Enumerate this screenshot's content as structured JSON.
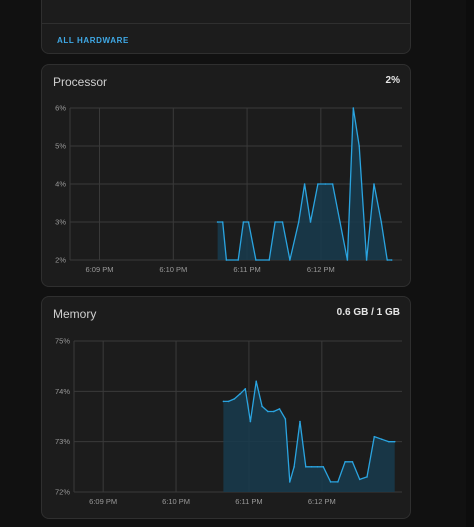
{
  "top_card": {
    "link_label": "ALL HARDWARE"
  },
  "processor": {
    "title": "Processor",
    "current": "2%"
  },
  "memory": {
    "title": "Memory",
    "current": "0.6 GB / 1 GB"
  },
  "chart_data": [
    {
      "type": "area",
      "title": "Processor",
      "x_ticks": [
        "6:09 PM",
        "6:10 PM",
        "6:11 PM",
        "6:12 PM"
      ],
      "x_tick_minutes": [
        9,
        10,
        11,
        12
      ],
      "x_range_minutes": [
        8.6,
        13.1
      ],
      "y_ticks": [
        "6%",
        "5%",
        "4%",
        "3%",
        "2%"
      ],
      "y_tick_values": [
        6,
        5,
        4,
        3,
        2
      ],
      "ylim": [
        2,
        6
      ],
      "grid": true,
      "series": [
        {
          "x": [
            10.6,
            10.67,
            10.72,
            10.88,
            10.95,
            11.02,
            11.12,
            11.3,
            11.38,
            11.48,
            11.58,
            11.7,
            11.78,
            11.86,
            11.96,
            12.06,
            12.16,
            12.26,
            12.36,
            12.44,
            12.52,
            12.62,
            12.72,
            12.82,
            12.9,
            12.96
          ],
          "y": [
            3,
            3,
            2,
            2,
            3,
            3,
            2,
            2,
            3,
            3,
            2,
            3,
            4,
            3,
            4,
            4,
            4,
            3,
            2,
            6,
            5,
            2,
            4,
            3,
            2,
            2
          ]
        }
      ]
    },
    {
      "type": "area",
      "title": "Memory",
      "x_ticks": [
        "6:09 PM",
        "6:10 PM",
        "6:11 PM",
        "6:12 PM"
      ],
      "x_tick_minutes": [
        9,
        10,
        11,
        12
      ],
      "x_range_minutes": [
        8.6,
        13.1
      ],
      "y_ticks": [
        "75%",
        "74%",
        "73%",
        "72%"
      ],
      "y_tick_values": [
        75,
        74,
        73,
        72
      ],
      "ylim": [
        72,
        75
      ],
      "grid": true,
      "series": [
        {
          "x": [
            10.65,
            10.72,
            10.8,
            10.88,
            10.95,
            11.02,
            11.1,
            11.18,
            11.26,
            11.34,
            11.42,
            11.5,
            11.56,
            11.62,
            11.7,
            11.78,
            11.86,
            11.94,
            12.02,
            12.12,
            12.22,
            12.32,
            12.42,
            12.52,
            12.62,
            12.72,
            12.82,
            12.92,
            13.0
          ],
          "y": [
            73.8,
            73.8,
            73.85,
            73.95,
            74.05,
            73.4,
            74.2,
            73.7,
            73.6,
            73.6,
            73.65,
            73.45,
            72.2,
            72.5,
            73.4,
            72.5,
            72.5,
            72.5,
            72.5,
            72.2,
            72.2,
            72.6,
            72.6,
            72.25,
            72.3,
            73.1,
            73.05,
            73.0,
            73.0
          ]
        }
      ]
    }
  ]
}
